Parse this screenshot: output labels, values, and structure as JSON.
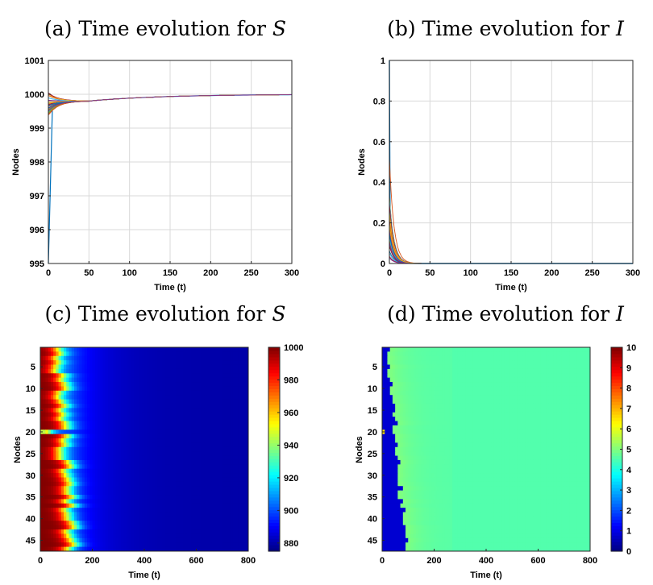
{
  "chart_data": [
    {
      "type": "line",
      "title_prefix": "(a) Time evolution for ",
      "title_var": "S",
      "xlabel": "Time (t)",
      "ylabel": "Nodes",
      "xlim": [
        0,
        300
      ],
      "ylim": [
        995,
        1001
      ],
      "xticks": [
        0,
        50,
        100,
        150,
        200,
        250,
        300
      ],
      "yticks": [
        995,
        996,
        997,
        998,
        999,
        1000,
        1001
      ],
      "grid": true,
      "series_count": 46,
      "initial_values": [
        995,
        999.4,
        999.5,
        999.6,
        999.7,
        999.8,
        999.9,
        1000
      ],
      "converged_value_at_t50": 999.8,
      "final_value_at_t300": 1000
    },
    {
      "type": "line",
      "title_prefix": "(b) Time evolution for ",
      "title_var": "I",
      "xlabel": "Time (t)",
      "ylabel": "Nodes",
      "xlim": [
        0,
        300
      ],
      "ylim": [
        0,
        1
      ],
      "xticks": [
        0,
        50,
        100,
        150,
        200,
        250,
        300
      ],
      "yticks": [
        0,
        0.2,
        0.4,
        0.6,
        0.8,
        1
      ],
      "grid": true,
      "series_count": 46,
      "initial_values": [
        1,
        0.52,
        0.32,
        0.25,
        0.2,
        0.15,
        0.1,
        0.05
      ],
      "decayed_value_at_t30": 0
    },
    {
      "type": "heatmap",
      "title_prefix": "(c) Time evolution for ",
      "title_var": "S",
      "xlabel": "Time (t)",
      "ylabel": "Nodes",
      "xlim": [
        0,
        800
      ],
      "xticks": [
        0,
        200,
        400,
        600,
        800
      ],
      "yticks": [
        5,
        10,
        15,
        20,
        25,
        30,
        35,
        40,
        45
      ],
      "rows": 47,
      "colorbar_range": [
        875,
        1000
      ],
      "colorbar_ticks": [
        880,
        900,
        920,
        940,
        960,
        980,
        1000
      ],
      "colormap": "jet",
      "dominant_value_after_t400": 880
    },
    {
      "type": "heatmap",
      "title_prefix": "(d) Time evolution for ",
      "title_var": "I",
      "xlabel": "Time (t)",
      "ylabel": "Nodes",
      "xlim": [
        0,
        800
      ],
      "xticks": [
        0,
        200,
        400,
        600,
        800
      ],
      "yticks": [
        5,
        10,
        15,
        20,
        25,
        30,
        35,
        40,
        45
      ],
      "rows": 47,
      "colorbar_range": [
        0,
        10
      ],
      "colorbar_ticks": [
        0,
        1,
        2,
        3,
        4,
        5,
        6,
        7,
        8,
        9,
        10
      ],
      "colormap": "jet",
      "dominant_value_after_t100": 4.6
    }
  ]
}
